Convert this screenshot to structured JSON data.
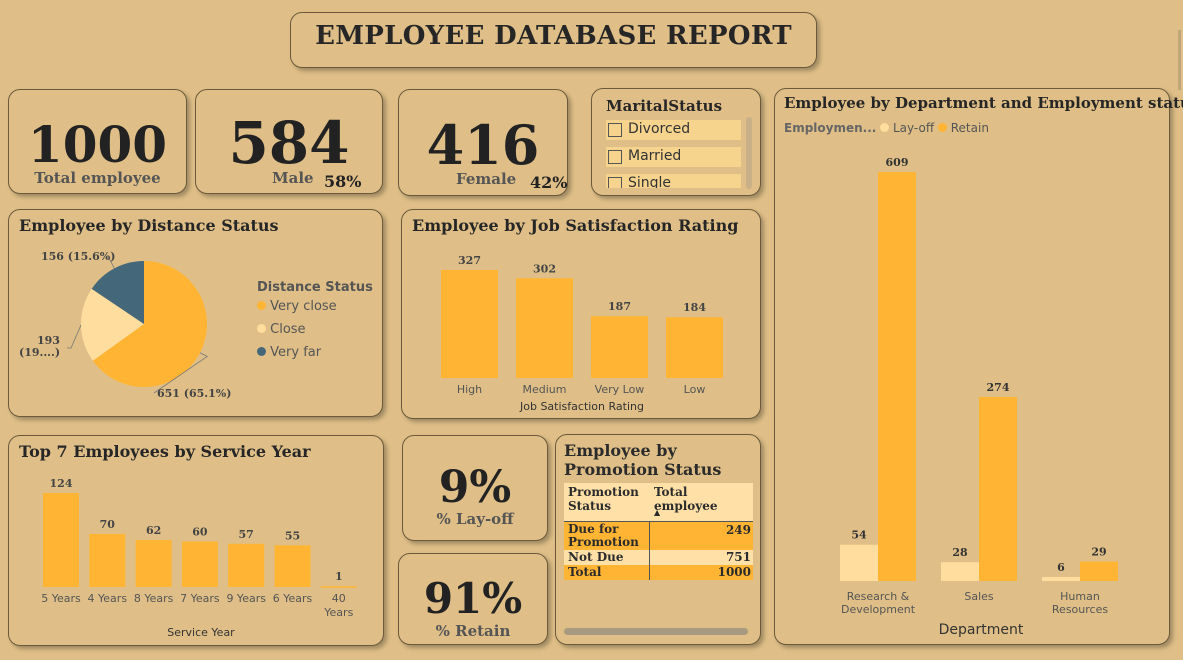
{
  "title": "EMPLOYEE DATABASE REPORT",
  "kpis": {
    "total": {
      "value": "1000",
      "label": "Total employee"
    },
    "male": {
      "value": "584",
      "label": "Male",
      "pct": "58%"
    },
    "female": {
      "value": "416",
      "label": "Female",
      "pct": "42%"
    },
    "layoff": {
      "value": "9%",
      "label": "% Lay-off"
    },
    "retain": {
      "value": "91%",
      "label": "% Retain"
    }
  },
  "marital_slicer": {
    "title": "MaritalStatus",
    "items": [
      "Divorced",
      "Married",
      "Single"
    ]
  },
  "promotion_table": {
    "title_line1": "Employee by",
    "title_line2": "Promotion Status",
    "headers": [
      "Promotion Status",
      "Total employee"
    ],
    "header_col1_line1": "Promotion",
    "header_col1_line2": "Status",
    "sort_indicator": "▲",
    "rows": [
      {
        "status_line1": "Due for",
        "status_line2": "Promotion",
        "total": "249"
      },
      {
        "status_line1": "Not Due",
        "status_line2": "",
        "total": "751"
      },
      {
        "status_line1": "Total",
        "status_line2": "",
        "total": "1000"
      }
    ]
  },
  "chart_data": [
    {
      "id": "distance",
      "type": "pie",
      "title": "Employee by Distance Status",
      "legend_title": "Distance Status",
      "legend_position": "right",
      "slices": [
        {
          "name": "Very close",
          "value": 651,
          "label": "651 (65.1%)",
          "color": "#ffb533"
        },
        {
          "name": "Close",
          "value": 193,
          "label_line1": "193",
          "label_line2": "(19....)",
          "color": "#ffdd9e"
        },
        {
          "name": "Very far",
          "value": 156,
          "label": "156 (15.6%)",
          "color": "#44687a"
        }
      ]
    },
    {
      "id": "job_satisfaction",
      "type": "bar",
      "title": "Employee by Job Satisfaction Rating",
      "xlabel": "Job Satisfaction Rating",
      "categories": [
        "High",
        "Medium",
        "Very Low",
        "Low"
      ],
      "values": [
        327,
        302,
        187,
        184
      ],
      "ylim": [
        0,
        327
      ],
      "color": "#ffb533"
    },
    {
      "id": "service_year",
      "type": "bar",
      "title": "Top 7 Employees by Service Year",
      "xlabel": "Service Year",
      "categories": [
        "5 Years",
        "4 Years",
        "8 Years",
        "7 Years",
        "9 Years",
        "6 Years",
        "40 Years"
      ],
      "values": [
        124,
        70,
        62,
        60,
        57,
        55,
        1
      ],
      "ylim": [
        0,
        124
      ],
      "color": "#ffb533"
    },
    {
      "id": "department",
      "type": "bar",
      "title": "Employee by Department and Employment status",
      "legend_title": "Employmen...",
      "legend_position": "top-left",
      "xlabel": "Department",
      "categories": [
        "Research & Development",
        "Sales",
        "Human Resources"
      ],
      "categories_wrapped": [
        [
          "Research &",
          "Development"
        ],
        [
          "Sales"
        ],
        [
          "Human",
          "Resources"
        ]
      ],
      "series": [
        {
          "name": "Lay-off",
          "values": [
            54,
            28,
            6
          ],
          "color": "#ffdd9e"
        },
        {
          "name": "Retain",
          "values": [
            609,
            274,
            29
          ],
          "color": "#ffb533"
        }
      ],
      "ylim": [
        0,
        609
      ]
    }
  ]
}
